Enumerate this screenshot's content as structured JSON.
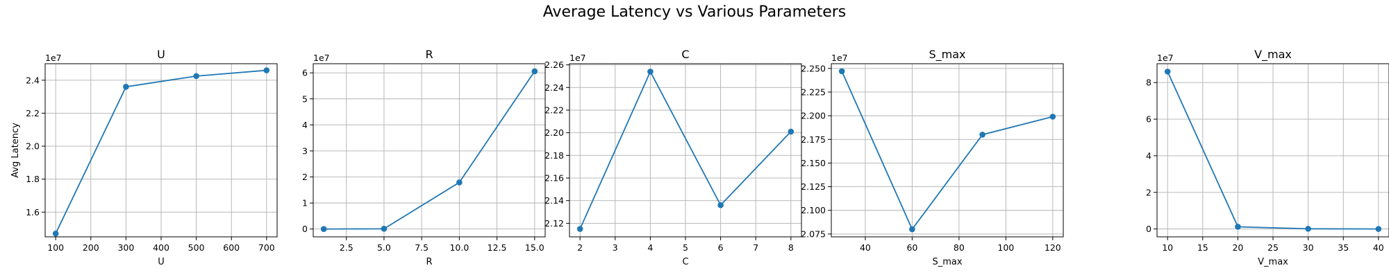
{
  "figure_title": "Average Latency vs Various Parameters",
  "colors": {
    "series": "#1f77b4",
    "grid": "#b0b0b0",
    "axes": "#000000"
  },
  "chart_data": [
    {
      "type": "line",
      "title": "U",
      "xlabel": "U",
      "ylabel": "Avg Latency",
      "y_offset_label": "1e7",
      "x": [
        100,
        300,
        500,
        700
      ],
      "y": [
        14700000,
        23600000,
        24250000,
        24600000
      ],
      "xlim": [
        70,
        730
      ],
      "ylim": [
        14500000,
        25000000
      ],
      "xticks": [
        100,
        200,
        300,
        400,
        500,
        600,
        700
      ],
      "xtick_labels": [
        "100",
        "200",
        "300",
        "400",
        "500",
        "600",
        "700"
      ],
      "yticks": [
        16000000,
        18000000,
        20000000,
        22000000,
        24000000
      ],
      "ytick_labels": [
        "1.6",
        "1.8",
        "2.0",
        "2.2",
        "2.4"
      ],
      "grid": true,
      "marker": "circle"
    },
    {
      "type": "line",
      "title": "R",
      "xlabel": "R",
      "ylabel": "",
      "y_offset_label": "1e7",
      "x": [
        1,
        5,
        10,
        15
      ],
      "y": [
        0,
        100000,
        17900000,
        60600000
      ],
      "xlim": [
        0.3,
        15.7
      ],
      "ylim": [
        -3000000,
        63500000
      ],
      "xticks": [
        2.5,
        5,
        7.5,
        10,
        12.5,
        15
      ],
      "xtick_labels": [
        "2.5",
        "5.0",
        "7.5",
        "10.0",
        "12.5",
        "15.0"
      ],
      "yticks": [
        0,
        10000000,
        20000000,
        30000000,
        40000000,
        50000000,
        60000000
      ],
      "ytick_labels": [
        "0",
        "1",
        "2",
        "3",
        "4",
        "5",
        "6"
      ],
      "grid": true,
      "marker": "circle"
    },
    {
      "type": "line",
      "title": "C",
      "xlabel": "C",
      "ylabel": "",
      "y_offset_label": "1e7",
      "x": [
        2,
        4,
        6,
        8
      ],
      "y": [
        21150000,
        22540000,
        21360000,
        22010000
      ],
      "xlim": [
        1.7,
        8.3
      ],
      "ylim": [
        21080000,
        22610000
      ],
      "xticks": [
        2,
        3,
        4,
        5,
        6,
        7,
        8
      ],
      "xtick_labels": [
        "2",
        "3",
        "4",
        "5",
        "6",
        "7",
        "8"
      ],
      "yticks": [
        21200000,
        21400000,
        21600000,
        21800000,
        22000000,
        22200000,
        22400000,
        22600000
      ],
      "ytick_labels": [
        "2.12",
        "2.14",
        "2.16",
        "2.18",
        "2.20",
        "2.22",
        "2.24",
        "2.26"
      ],
      "grid": true,
      "marker": "circle"
    },
    {
      "type": "line",
      "title": "S_max",
      "xlabel": "S_max",
      "ylabel": "",
      "y_offset_label": "1e7",
      "x": [
        30,
        60,
        90,
        120
      ],
      "y": [
        22470000,
        20800000,
        21800000,
        21990000
      ],
      "xlim": [
        25.5,
        124.5
      ],
      "ylim": [
        20720000,
        22550000
      ],
      "xticks": [
        40,
        60,
        80,
        100,
        120
      ],
      "xtick_labels": [
        "40",
        "60",
        "80",
        "100",
        "120"
      ],
      "yticks": [
        20750000,
        21000000,
        21250000,
        21500000,
        21750000,
        22000000,
        22250000,
        22500000
      ],
      "ytick_labels": [
        "2.075",
        "2.100",
        "2.125",
        "2.150",
        "2.175",
        "2.200",
        "2.225",
        "2.250"
      ],
      "grid": true,
      "marker": "circle"
    },
    {
      "type": "line",
      "title": "V_max",
      "xlabel": "V_max",
      "ylabel": "",
      "y_offset_label": "1e7",
      "x": [
        10,
        20,
        30,
        40
      ],
      "y": [
        86000000,
        1200000,
        100000,
        0
      ],
      "xlim": [
        8.5,
        41.5
      ],
      "ylim": [
        -4300000,
        90300000
      ],
      "xticks": [
        10,
        15,
        20,
        25,
        30,
        35,
        40
      ],
      "xtick_labels": [
        "10",
        "15",
        "20",
        "25",
        "30",
        "35",
        "40"
      ],
      "yticks": [
        0,
        20000000,
        40000000,
        60000000,
        80000000
      ],
      "ytick_labels": [
        "0",
        "2",
        "4",
        "6",
        "8"
      ],
      "grid": true,
      "marker": "circle"
    }
  ]
}
